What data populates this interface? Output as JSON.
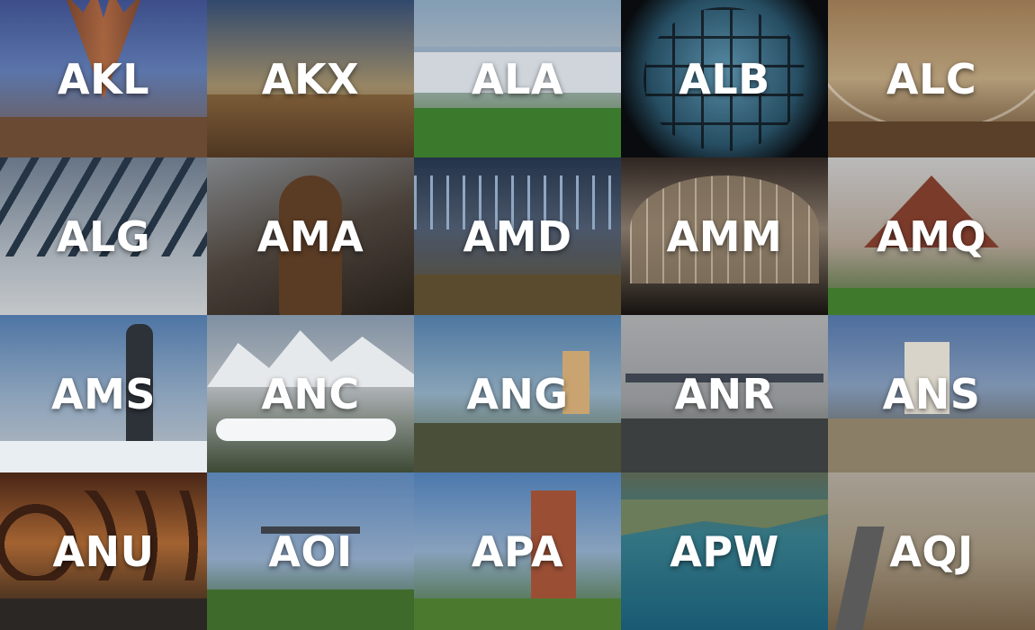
{
  "tiles": [
    {
      "code": "AKL",
      "bg": "linear-gradient(180deg,#4a5fa8 0%,#6f8fd0 45%,#8a6a55 100%)"
    },
    {
      "code": "AKX",
      "bg": "linear-gradient(180deg,#3d5a86 0%,#b9a47a 55%,#6b4a2a 100%)"
    },
    {
      "code": "ALA",
      "bg": "linear-gradient(180deg,#9fc0dc 0%,#cfd9e3 45%,#3e7a2e 100%)"
    },
    {
      "code": "ALB",
      "bg": "radial-gradient(circle at 50% 45%,#6aa9c9 0%,#2f5f78 55%,#0b0e12 80%)"
    },
    {
      "code": "ALC",
      "bg": "linear-gradient(180deg,#b79063 0%,#d9bd92 50%,#6a4e33 100%)"
    },
    {
      "code": "ALG",
      "bg": "linear-gradient(180deg,#7d8ea2 0%,#c8d2dc 60%,#eef2f5 100%)"
    },
    {
      "code": "AMA",
      "bg": "linear-gradient(160deg,#9aa0a5 0%,#5b5047 50%,#2e261f 100%)"
    },
    {
      "code": "AMD",
      "bg": "linear-gradient(180deg,#2c3f5a 0%,#5b6a82 45%,#6b5a38 100%)"
    },
    {
      "code": "AMM",
      "bg": "linear-gradient(180deg,#3a2f2a 0%,#9c8c7a 45%,#1c1714 100%)"
    },
    {
      "code": "AMQ",
      "bg": "linear-gradient(180deg,#e3e3e3 0%,#c9b9a9 55%,#4f7a3a 100%)"
    },
    {
      "code": "AMS",
      "bg": "linear-gradient(180deg,#5f8fc8 0%,#a8c4e2 50%,#dfe5ea 100%)"
    },
    {
      "code": "ANC",
      "bg": "linear-gradient(180deg,#9bb0c6 0%,#d8dde2 45%,#4a5a40 100%)"
    },
    {
      "code": "ANG",
      "bg": "linear-gradient(180deg,#5f92c4 0%,#a7c8e0 50%,#5d6a3c 100%)"
    },
    {
      "code": "ANR",
      "bg": "linear-gradient(180deg,#c7c9cc 0%,#aeb1b4 55%,#4f5a4a 100%)"
    },
    {
      "code": "ANS",
      "bg": "linear-gradient(180deg,#5f86c0 0%,#97b2d6 45%,#6a5a3c 100%)"
    },
    {
      "code": "ANU",
      "bg": "linear-gradient(180deg,#5a2f1c 0%,#c7793c 45%,#2a241f 100%)"
    },
    {
      "code": "AOI",
      "bg": "linear-gradient(180deg,#6c9cd6 0%,#a9c6e8 55%,#3f6a2c 100%)"
    },
    {
      "code": "APA",
      "bg": "linear-gradient(180deg,#5d94d4 0%,#a6c5e7 50%,#4d7a2f 100%)"
    },
    {
      "code": "APW",
      "bg": "linear-gradient(180deg,#6d7a63 0%,#3f8fa0 40%,#1f6f8c 100%)"
    },
    {
      "code": "AQJ",
      "bg": "linear-gradient(180deg,#c9c1b3 0%,#b8a98f 50%,#8a7256 100%)"
    }
  ]
}
